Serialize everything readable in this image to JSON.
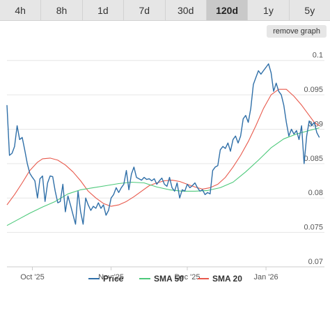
{
  "tabs": [
    {
      "label": "4h",
      "active": false
    },
    {
      "label": "8h",
      "active": false
    },
    {
      "label": "1d",
      "active": false
    },
    {
      "label": "7d",
      "active": false
    },
    {
      "label": "30d",
      "active": false
    },
    {
      "label": "120d",
      "active": true
    },
    {
      "label": "1y",
      "active": false
    },
    {
      "label": "5y",
      "active": false
    }
  ],
  "remove_graph_label": "remove graph",
  "chart_data": {
    "type": "line",
    "title": "",
    "xlabel": "",
    "ylabel": "",
    "x_range": [
      "2025-09-21",
      "2026-01-24"
    ],
    "ylim": [
      0.07,
      0.1025
    ],
    "y_ticks": [
      0.07,
      0.075,
      0.08,
      0.085,
      0.09,
      0.095,
      0.1
    ],
    "y_tick_labels": [
      "0.07",
      "0.075",
      "0.08",
      "0.085",
      "0.09",
      "0.095",
      "0.1"
    ],
    "x_ticks": [
      "2025-10-01",
      "2025-11-01",
      "2025-12-01",
      "2026-01-01"
    ],
    "x_tick_labels": [
      "Oct '25",
      "Nov '25",
      "Dec '25",
      "Jan '26"
    ],
    "grid": "horizontal",
    "legend_position": "bottom",
    "series": [
      {
        "name": "Price",
        "color": "#2f6fa8",
        "points": [
          [
            "2025-09-21",
            0.0935
          ],
          [
            "2025-09-22",
            0.0862
          ],
          [
            "2025-09-23",
            0.0865
          ],
          [
            "2025-09-24",
            0.0875
          ],
          [
            "2025-09-25",
            0.0905
          ],
          [
            "2025-09-26",
            0.0885
          ],
          [
            "2025-09-27",
            0.0888
          ],
          [
            "2025-09-28",
            0.087
          ],
          [
            "2025-09-29",
            0.085
          ],
          [
            "2025-09-30",
            0.0836
          ],
          [
            "2025-10-01",
            0.083
          ],
          [
            "2025-10-02",
            0.0825
          ],
          [
            "2025-10-03",
            0.08
          ],
          [
            "2025-10-04",
            0.0828
          ],
          [
            "2025-10-05",
            0.0832
          ],
          [
            "2025-10-06",
            0.0795
          ],
          [
            "2025-10-07",
            0.0822
          ],
          [
            "2025-10-08",
            0.0832
          ],
          [
            "2025-10-09",
            0.0831
          ],
          [
            "2025-10-10",
            0.081
          ],
          [
            "2025-10-11",
            0.0793
          ],
          [
            "2025-10-12",
            0.0795
          ],
          [
            "2025-10-13",
            0.082
          ],
          [
            "2025-10-14",
            0.078
          ],
          [
            "2025-10-15",
            0.0803
          ],
          [
            "2025-10-16",
            0.079
          ],
          [
            "2025-10-17",
            0.0776
          ],
          [
            "2025-10-18",
            0.0762
          ],
          [
            "2025-10-19",
            0.081
          ],
          [
            "2025-10-20",
            0.078
          ],
          [
            "2025-10-21",
            0.0762
          ],
          [
            "2025-10-22",
            0.08
          ],
          [
            "2025-10-23",
            0.079
          ],
          [
            "2025-10-24",
            0.0782
          ],
          [
            "2025-10-25",
            0.0788
          ],
          [
            "2025-10-26",
            0.0785
          ],
          [
            "2025-10-27",
            0.0793
          ],
          [
            "2025-10-28",
            0.0785
          ],
          [
            "2025-10-29",
            0.079
          ],
          [
            "2025-10-30",
            0.0775
          ],
          [
            "2025-10-31",
            0.0782
          ],
          [
            "2025-11-01",
            0.08
          ],
          [
            "2025-11-02",
            0.0805
          ],
          [
            "2025-11-03",
            0.0815
          ],
          [
            "2025-11-04",
            0.0808
          ],
          [
            "2025-11-05",
            0.0815
          ],
          [
            "2025-11-06",
            0.082
          ],
          [
            "2025-11-07",
            0.084
          ],
          [
            "2025-11-08",
            0.0812
          ],
          [
            "2025-11-09",
            0.0835
          ],
          [
            "2025-11-10",
            0.0845
          ],
          [
            "2025-11-11",
            0.083
          ],
          [
            "2025-11-12",
            0.0828
          ],
          [
            "2025-11-13",
            0.0826
          ],
          [
            "2025-11-14",
            0.083
          ],
          [
            "2025-11-15",
            0.0827
          ],
          [
            "2025-11-16",
            0.0828
          ],
          [
            "2025-11-17",
            0.0825
          ],
          [
            "2025-11-18",
            0.0828
          ],
          [
            "2025-11-19",
            0.082
          ],
          [
            "2025-11-20",
            0.0825
          ],
          [
            "2025-11-21",
            0.0829
          ],
          [
            "2025-11-22",
            0.082
          ],
          [
            "2025-11-23",
            0.0817
          ],
          [
            "2025-11-24",
            0.083
          ],
          [
            "2025-11-25",
            0.0815
          ],
          [
            "2025-11-26",
            0.081
          ],
          [
            "2025-11-27",
            0.0822
          ],
          [
            "2025-11-28",
            0.08
          ],
          [
            "2025-11-29",
            0.0812
          ],
          [
            "2025-11-30",
            0.081
          ],
          [
            "2025-12-01",
            0.082
          ],
          [
            "2025-12-02",
            0.0815
          ],
          [
            "2025-12-03",
            0.0818
          ],
          [
            "2025-12-04",
            0.0822
          ],
          [
            "2025-12-05",
            0.0815
          ],
          [
            "2025-12-06",
            0.081
          ],
          [
            "2025-12-07",
            0.0812
          ],
          [
            "2025-12-08",
            0.0805
          ],
          [
            "2025-12-09",
            0.0808
          ],
          [
            "2025-12-10",
            0.0806
          ],
          [
            "2025-12-11",
            0.084
          ],
          [
            "2025-12-12",
            0.0845
          ],
          [
            "2025-12-13",
            0.0847
          ],
          [
            "2025-12-14",
            0.087
          ],
          [
            "2025-12-15",
            0.0875
          ],
          [
            "2025-12-16",
            0.0872
          ],
          [
            "2025-12-17",
            0.088
          ],
          [
            "2025-12-18",
            0.0868
          ],
          [
            "2025-12-19",
            0.0885
          ],
          [
            "2025-12-20",
            0.089
          ],
          [
            "2025-12-21",
            0.088
          ],
          [
            "2025-12-22",
            0.089
          ],
          [
            "2025-12-23",
            0.0915
          ],
          [
            "2025-12-24",
            0.092
          ],
          [
            "2025-12-25",
            0.091
          ],
          [
            "2025-12-26",
            0.093
          ],
          [
            "2025-12-27",
            0.0965
          ],
          [
            "2025-12-28",
            0.0975
          ],
          [
            "2025-12-29",
            0.0985
          ],
          [
            "2025-12-30",
            0.098
          ],
          [
            "2025-12-31",
            0.0985
          ],
          [
            "2026-01-01",
            0.099
          ],
          [
            "2026-01-02",
            0.0995
          ],
          [
            "2026-01-03",
            0.0982
          ],
          [
            "2026-01-04",
            0.0955
          ],
          [
            "2026-01-05",
            0.0967
          ],
          [
            "2026-01-06",
            0.0955
          ],
          [
            "2026-01-07",
            0.095
          ],
          [
            "2026-01-08",
            0.0935
          ],
          [
            "2026-01-09",
            0.091
          ],
          [
            "2026-01-10",
            0.089
          ],
          [
            "2026-01-11",
            0.09
          ],
          [
            "2026-01-12",
            0.0893
          ],
          [
            "2026-01-13",
            0.0898
          ],
          [
            "2026-01-14",
            0.0885
          ],
          [
            "2026-01-15",
            0.0905
          ],
          [
            "2026-01-16",
            0.085
          ],
          [
            "2026-01-17",
            0.089
          ],
          [
            "2026-01-18",
            0.0912
          ],
          [
            "2026-01-19",
            0.0905
          ],
          [
            "2026-01-20",
            0.091
          ],
          [
            "2026-01-21",
            0.0895
          ],
          [
            "2026-01-22",
            0.0888
          ]
        ]
      },
      {
        "name": "SMA 50",
        "color": "#4cc97a",
        "points": [
          [
            "2025-09-21",
            0.076
          ],
          [
            "2025-09-25",
            0.0768
          ],
          [
            "2025-09-30",
            0.0778
          ],
          [
            "2025-10-05",
            0.0787
          ],
          [
            "2025-10-10",
            0.0795
          ],
          [
            "2025-10-15",
            0.0806
          ],
          [
            "2025-10-20",
            0.0812
          ],
          [
            "2025-10-25",
            0.0815
          ],
          [
            "2025-10-30",
            0.0818
          ],
          [
            "2025-11-04",
            0.0821
          ],
          [
            "2025-11-09",
            0.0823
          ],
          [
            "2025-11-14",
            0.0822
          ],
          [
            "2025-11-19",
            0.0816
          ],
          [
            "2025-11-24",
            0.0812
          ],
          [
            "2025-11-29",
            0.081
          ],
          [
            "2025-12-04",
            0.081
          ],
          [
            "2025-12-09",
            0.0811
          ],
          [
            "2025-12-14",
            0.0815
          ],
          [
            "2025-12-19",
            0.0823
          ],
          [
            "2025-12-24",
            0.0838
          ],
          [
            "2025-12-29",
            0.0855
          ],
          [
            "2026-01-03",
            0.0873
          ],
          [
            "2026-01-08",
            0.0886
          ],
          [
            "2026-01-13",
            0.0893
          ],
          [
            "2026-01-18",
            0.0898
          ],
          [
            "2026-01-22",
            0.0902
          ]
        ]
      },
      {
        "name": "SMA 20",
        "color": "#e8594c",
        "points": [
          [
            "2025-09-21",
            0.079
          ],
          [
            "2025-09-24",
            0.0805
          ],
          [
            "2025-09-27",
            0.0822
          ],
          [
            "2025-09-30",
            0.084
          ],
          [
            "2025-10-03",
            0.0852
          ],
          [
            "2025-10-05",
            0.0857
          ],
          [
            "2025-10-08",
            0.0858
          ],
          [
            "2025-10-11",
            0.0855
          ],
          [
            "2025-10-14",
            0.0848
          ],
          [
            "2025-10-17",
            0.0838
          ],
          [
            "2025-10-20",
            0.0825
          ],
          [
            "2025-10-23",
            0.081
          ],
          [
            "2025-10-26",
            0.08
          ],
          [
            "2025-10-29",
            0.0792
          ],
          [
            "2025-11-01",
            0.0788
          ],
          [
            "2025-11-04",
            0.079
          ],
          [
            "2025-11-07",
            0.0795
          ],
          [
            "2025-11-10",
            0.0802
          ],
          [
            "2025-11-13",
            0.081
          ],
          [
            "2025-11-16",
            0.0818
          ],
          [
            "2025-11-19",
            0.0822
          ],
          [
            "2025-11-22",
            0.0825
          ],
          [
            "2025-11-25",
            0.0826
          ],
          [
            "2025-11-28",
            0.0824
          ],
          [
            "2025-12-01",
            0.082
          ],
          [
            "2025-12-04",
            0.0816
          ],
          [
            "2025-12-07",
            0.0813
          ],
          [
            "2025-12-10",
            0.0815
          ],
          [
            "2025-12-13",
            0.082
          ],
          [
            "2025-12-16",
            0.083
          ],
          [
            "2025-12-19",
            0.0845
          ],
          [
            "2025-12-22",
            0.0862
          ],
          [
            "2025-12-25",
            0.0882
          ],
          [
            "2025-12-28",
            0.0905
          ],
          [
            "2025-12-31",
            0.093
          ],
          [
            "2026-01-03",
            0.095
          ],
          [
            "2026-01-06",
            0.0958
          ],
          [
            "2026-01-09",
            0.0958
          ],
          [
            "2026-01-12",
            0.0948
          ],
          [
            "2026-01-15",
            0.0935
          ],
          [
            "2026-01-18",
            0.092
          ],
          [
            "2026-01-20",
            0.091
          ],
          [
            "2026-01-22",
            0.0905
          ]
        ]
      }
    ]
  }
}
